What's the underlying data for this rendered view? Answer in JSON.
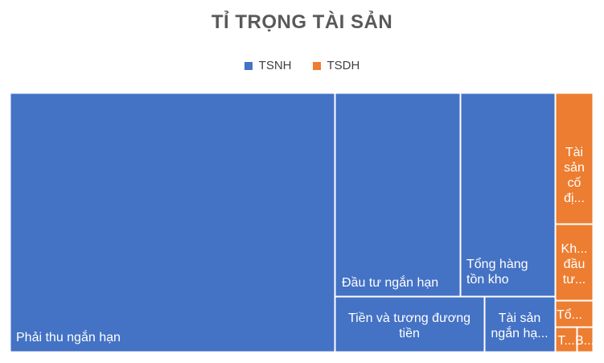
{
  "chart_data": {
    "type": "treemap",
    "title": "TỈ TRỌNG TÀI SẢN",
    "legend": {
      "placement": "top"
    },
    "series": [
      {
        "name": "TSNH",
        "color": "#4472C4"
      },
      {
        "name": "TSDH",
        "color": "#ED7D31"
      }
    ],
    "items": [
      {
        "label": "Phải thu ngắn hạn",
        "group": "TSNH",
        "value": 42.5
      },
      {
        "label": "Đầu tư ngắn hạn",
        "group": "TSNH",
        "value": 8.8
      },
      {
        "label": "Tổng hàng tồn kho",
        "group": "TSNH",
        "value": 8.2
      },
      {
        "label": "Tiền và tương đương tiền",
        "group": "TSNH",
        "value": 6.5
      },
      {
        "label": "Tài sản ngắn hạ...",
        "group": "TSNH",
        "value": 3.2
      },
      {
        "label": "Tài sản cố đị...",
        "group": "TSDH",
        "value": 3.2
      },
      {
        "label": "Kh... đầu tư...",
        "group": "TSDH",
        "value": 1.7
      },
      {
        "label": "Tổ...",
        "group": "TSDH",
        "value": 0.7
      },
      {
        "label": "T...",
        "group": "TSDH",
        "value": 0.6
      },
      {
        "label": "B...",
        "group": "TSDH",
        "value": 0.3
      }
    ]
  }
}
